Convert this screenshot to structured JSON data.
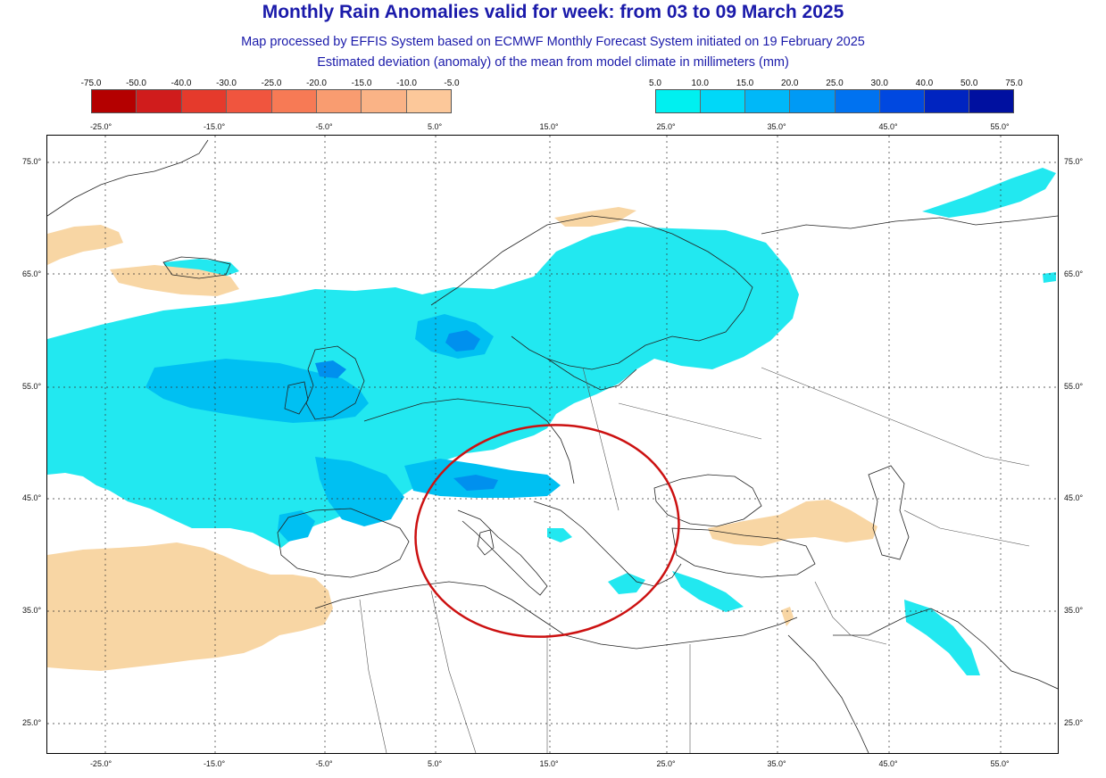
{
  "title": "Monthly Rain Anomalies valid for week: from 03 to 09 March 2025",
  "subtitle_line1": "Map processed by EFFIS System based on ECMWF Monthly Forecast System initiated on 19 February 2025",
  "subtitle_line2": "Estimated deviation (anomaly) of the mean from model climate in millimeters (mm)",
  "colorbar_negative": {
    "labels": [
      "-75.0",
      "-50.0",
      "-40.0",
      "-30.0",
      "-25.0",
      "-20.0",
      "-15.0",
      "-10.0",
      "-5.0"
    ],
    "colors": [
      "#b40000",
      "#d01c1c",
      "#e53a2c",
      "#f0553e",
      "#f77a55",
      "#f99c70",
      "#fab386",
      "#fcc89a"
    ]
  },
  "colorbar_positive": {
    "labels": [
      "5.0",
      "10.0",
      "15.0",
      "20.0",
      "25.0",
      "30.0",
      "40.0",
      "50.0",
      "75.0"
    ],
    "colors": [
      "#00f0f0",
      "#00d8f8",
      "#00b8f8",
      "#009af5",
      "#0072f0",
      "#0048e0",
      "#0024c0",
      "#0010a0"
    ]
  },
  "longitude_labels": [
    "-25.0°",
    "-15.0°",
    "-5.0°",
    "5.0°",
    "15.0°",
    "25.0°",
    "35.0°",
    "45.0°",
    "55.0°"
  ],
  "latitude_labels": [
    "75.0°",
    "65.0°",
    "55.0°",
    "45.0°",
    "35.0°",
    "25.0°"
  ],
  "colors": {
    "title": "#1a1aaa",
    "positive_light": "#22e8f0",
    "positive_mid": "#00c0f2",
    "positive_strong": "#0090ee",
    "negative_light": "#f8d6a4",
    "annotation_circle": "#cc1111"
  }
}
